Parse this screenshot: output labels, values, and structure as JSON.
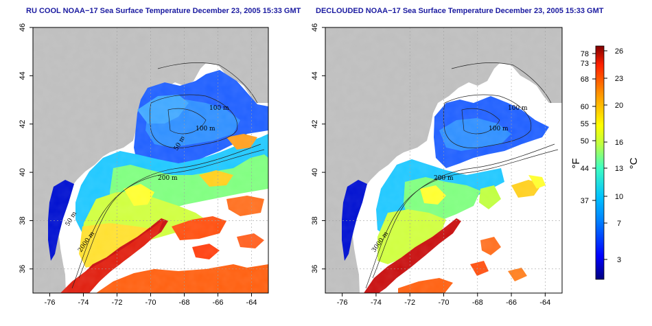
{
  "panels": [
    {
      "title": "RU COOL NOAA−17 Sea Surface Temperature December 23, 2005 15:33 GMT",
      "x_ticks": [
        "-76",
        "-74",
        "-72",
        "-70",
        "-68",
        "-66",
        "-64"
      ],
      "y_ticks": [
        "36",
        "38",
        "40",
        "42",
        "44",
        "46"
      ],
      "contour_labels": [
        "100 m",
        "100 m",
        "50 m",
        "200 m",
        "50 m",
        "2000 m"
      ]
    },
    {
      "title": "DECLOUDED NOAA−17 Sea Surface Temperature December 23, 2005 15:33 GMT",
      "x_ticks": [
        "-76",
        "-74",
        "-72",
        "-70",
        "-68",
        "-66",
        "-64"
      ],
      "y_ticks": [
        "36",
        "38",
        "40",
        "42",
        "44",
        "46"
      ],
      "contour_labels": [
        "100 m",
        "100 m",
        "200 m",
        "3000 m"
      ]
    }
  ],
  "colorbar": {
    "f_ticks": [
      "78",
      "73",
      "68",
      "60",
      "55",
      "50",
      "44",
      "37"
    ],
    "c_ticks": [
      "26",
      "23",
      "20",
      "16",
      "13",
      "10",
      "7",
      "3"
    ],
    "f_unit": "°F",
    "c_unit": "°C",
    "colors": [
      "#000080",
      "#0000ff",
      "#0080ff",
      "#00c0ff",
      "#40ffc0",
      "#c0ff40",
      "#ffff00",
      "#ff9000",
      "#ff2000",
      "#800000"
    ]
  },
  "colors": {
    "land": "#bebebe",
    "title": "#1a1aa0",
    "grid": "#a0a0a0"
  }
}
